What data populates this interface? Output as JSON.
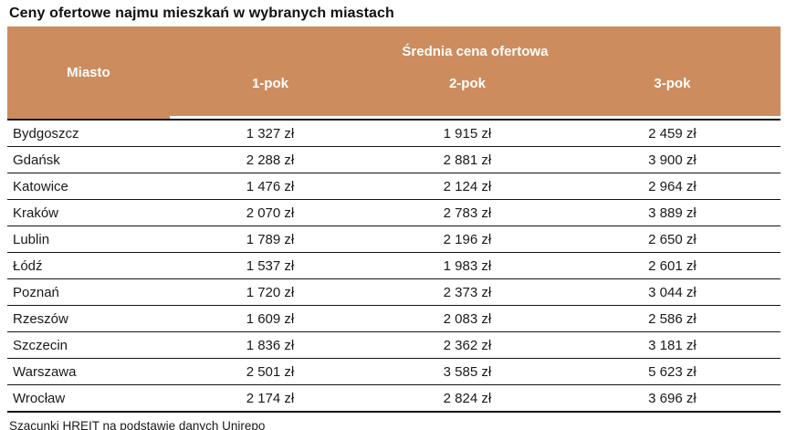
{
  "title": "Ceny ofertowe najmu mieszkań w wybranych miastach",
  "colors": {
    "header_bg": "#CD8C5E",
    "header_text": "#FFFFFF",
    "row_border": "#141414",
    "spellcheck_underline": "#C00000"
  },
  "table": {
    "city_header": "Miasto",
    "group_header": "Średnia cena ofertowa",
    "columns": [
      "1-pok",
      "2-pok",
      "3-pok"
    ],
    "rows": [
      {
        "city": "Bydgoszcz",
        "values": [
          "1 327 zł",
          "1 915 zł",
          "2 459 zł"
        ]
      },
      {
        "city": "Gdańsk",
        "values": [
          "2 288 zł",
          "2 881 zł",
          "3 900 zł"
        ]
      },
      {
        "city": "Katowice",
        "values": [
          "1 476 zł",
          "2 124 zł",
          "2 964 zł"
        ]
      },
      {
        "city": "Kraków",
        "values": [
          "2 070 zł",
          "2 783 zł",
          "3 889 zł"
        ]
      },
      {
        "city": "Lublin",
        "values": [
          "1 789 zł",
          "2 196 zł",
          "2 650 zł"
        ]
      },
      {
        "city": "Łódź",
        "values": [
          "1 537 zł",
          "1 983 zł",
          "2 601 zł"
        ]
      },
      {
        "city": "Poznań",
        "values": [
          "1 720 zł",
          "2 373 zł",
          "3 044 zł"
        ]
      },
      {
        "city": "Rzeszów",
        "values": [
          "1 609 zł",
          "2 083 zł",
          "2 586 zł"
        ]
      },
      {
        "city": "Szczecin",
        "values": [
          "1 836 zł",
          "2 362 zł",
          "3 181 zł"
        ]
      },
      {
        "city": "Warszawa",
        "values": [
          "2 501 zł",
          "3 585 zł",
          "5 623 zł"
        ]
      },
      {
        "city": "Wrocław",
        "values": [
          "2 174 zł",
          "2 824 zł",
          "3 696 zł"
        ]
      }
    ]
  },
  "footer": {
    "text_prefix": "Szacunki HREIT na podstawie danych ",
    "highlighted_word": "Unirepo"
  },
  "chart_data": {
    "type": "table",
    "title": "Ceny ofertowe najmu mieszkań w wybranych miastach",
    "group_header": "Średnia cena ofertowa",
    "columns": [
      "Miasto",
      "1-pok",
      "2-pok",
      "3-pok"
    ],
    "unit": "zł",
    "rows": [
      [
        "Bydgoszcz",
        1327,
        1915,
        2459
      ],
      [
        "Gdańsk",
        2288,
        2881,
        3900
      ],
      [
        "Katowice",
        1476,
        2124,
        2964
      ],
      [
        "Kraków",
        2070,
        2783,
        3889
      ],
      [
        "Lublin",
        1789,
        2196,
        2650
      ],
      [
        "Łódź",
        1537,
        1983,
        2601
      ],
      [
        "Poznań",
        1720,
        2373,
        3044
      ],
      [
        "Rzeszów",
        1609,
        2083,
        2586
      ],
      [
        "Szczecin",
        1836,
        2362,
        3181
      ],
      [
        "Warszawa",
        2501,
        3585,
        5623
      ],
      [
        "Wrocław",
        2174,
        2824,
        3696
      ]
    ],
    "source": "Szacunki HREIT na podstawie danych Unirepo"
  }
}
